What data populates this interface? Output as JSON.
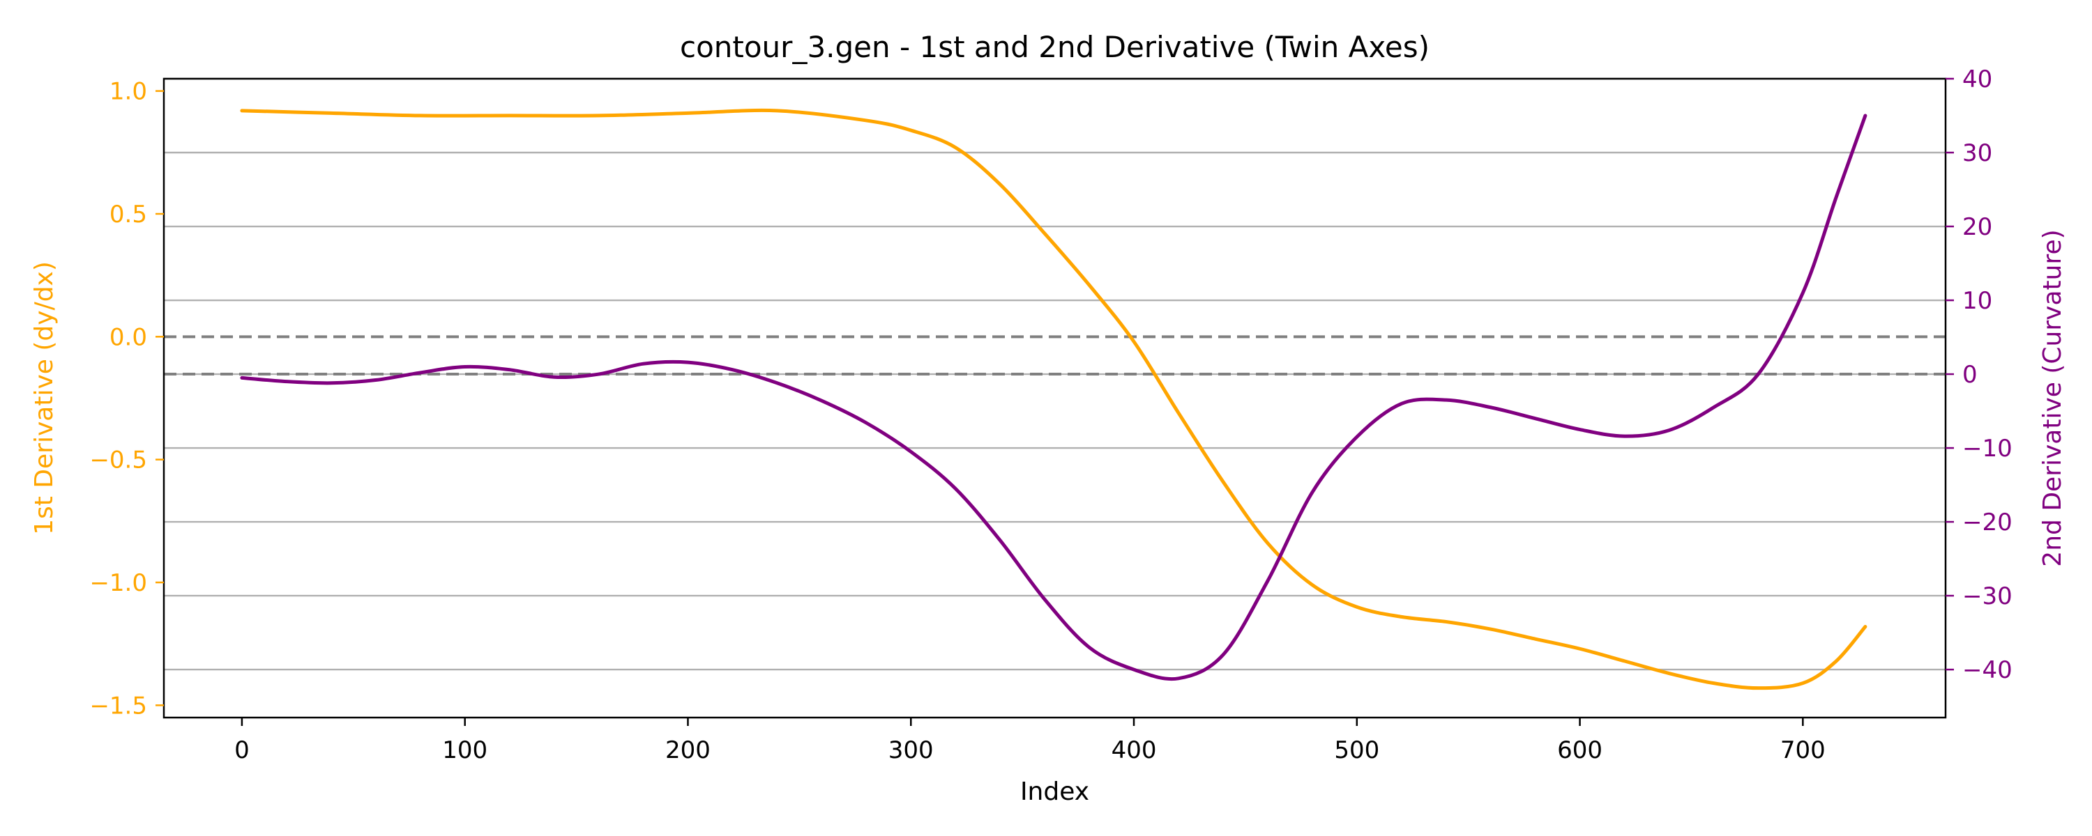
{
  "chart_data": {
    "type": "line",
    "title": "contour_3.gen - 1st and 2nd Derivative (Twin Axes)",
    "xlabel": "Index",
    "ylabel_left": "1st Derivative (dy/dx)",
    "ylabel_right": "2nd Derivative (Curvature)",
    "xlim": [
      -35,
      764
    ],
    "ylim_left": [
      -1.55,
      1.05
    ],
    "ylim_right": [
      -46.5,
      40
    ],
    "x_ticks": [
      0,
      100,
      200,
      300,
      400,
      500,
      600,
      700
    ],
    "x_tick_labels": [
      "0",
      "100",
      "200",
      "300",
      "400",
      "500",
      "600",
      "700"
    ],
    "y_ticks_left": [
      1.0,
      0.5,
      0.0,
      -0.5,
      -1.0,
      -1.5
    ],
    "y_tick_labels_left": [
      "1.0",
      "0.5",
      "0.0",
      "−0.5",
      "−1.0",
      "−1.5"
    ],
    "y_ticks_right": [
      40,
      30,
      20,
      10,
      0,
      -10,
      -20,
      -30,
      -40
    ],
    "y_tick_labels_right": [
      "40",
      "30",
      "20",
      "10",
      "0",
      "−10",
      "−20",
      "−30",
      "−40"
    ],
    "grid": "horizontal lines at right-axis ticks",
    "reference_lines": [
      {
        "axis": "left",
        "y": 0,
        "style": "dashed",
        "color": "#808080"
      },
      {
        "axis": "right",
        "y": 0,
        "style": "dashed",
        "color": "#808080"
      }
    ],
    "series": [
      {
        "axis": "left",
        "color": "#FFA500",
        "x": [
          0,
          40,
          80,
          120,
          160,
          200,
          240,
          280,
          300,
          320,
          340,
          360,
          380,
          400,
          420,
          440,
          460,
          480,
          500,
          520,
          540,
          560,
          580,
          600,
          620,
          640,
          660,
          680,
          700,
          715,
          728
        ],
        "y": [
          0.92,
          0.91,
          0.9,
          0.9,
          0.9,
          0.91,
          0.92,
          0.88,
          0.84,
          0.77,
          0.62,
          0.42,
          0.21,
          -0.02,
          -0.31,
          -0.59,
          -0.84,
          -1.01,
          -1.1,
          -1.14,
          -1.16,
          -1.19,
          -1.23,
          -1.27,
          -1.32,
          -1.37,
          -1.41,
          -1.43,
          -1.41,
          -1.32,
          -1.18
        ]
      },
      {
        "axis": "right",
        "color": "#800080",
        "x": [
          0,
          20,
          40,
          60,
          80,
          100,
          120,
          140,
          160,
          180,
          200,
          220,
          240,
          260,
          280,
          300,
          320,
          340,
          360,
          380,
          400,
          420,
          440,
          460,
          480,
          500,
          520,
          540,
          560,
          580,
          600,
          620,
          640,
          660,
          680,
          700,
          715,
          728
        ],
        "y": [
          -0.5,
          -1.0,
          -1.2,
          -0.8,
          0.2,
          1.0,
          0.6,
          -0.4,
          0.0,
          1.4,
          1.6,
          0.6,
          -1.2,
          -3.6,
          -6.6,
          -10.5,
          -15.5,
          -22.5,
          -30.5,
          -37.0,
          -40.0,
          -41.2,
          -38.0,
          -28.0,
          -16.0,
          -8.5,
          -4.0,
          -3.5,
          -4.5,
          -6.0,
          -7.5,
          -8.4,
          -7.6,
          -4.5,
          0.0,
          11.0,
          24.0,
          35.0
        ]
      }
    ]
  }
}
